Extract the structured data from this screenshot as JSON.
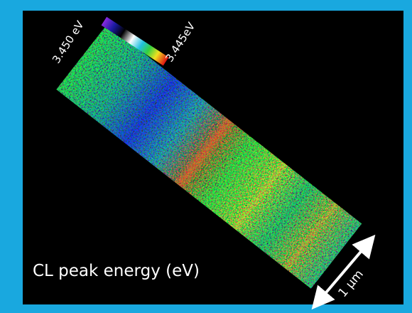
{
  "image": {
    "colorbar": {
      "top_label": "3.450 eV",
      "bottom_label": "3.445eV"
    },
    "caption": "CL peak energy (eV)",
    "scale_bar": "1 μm"
  }
}
